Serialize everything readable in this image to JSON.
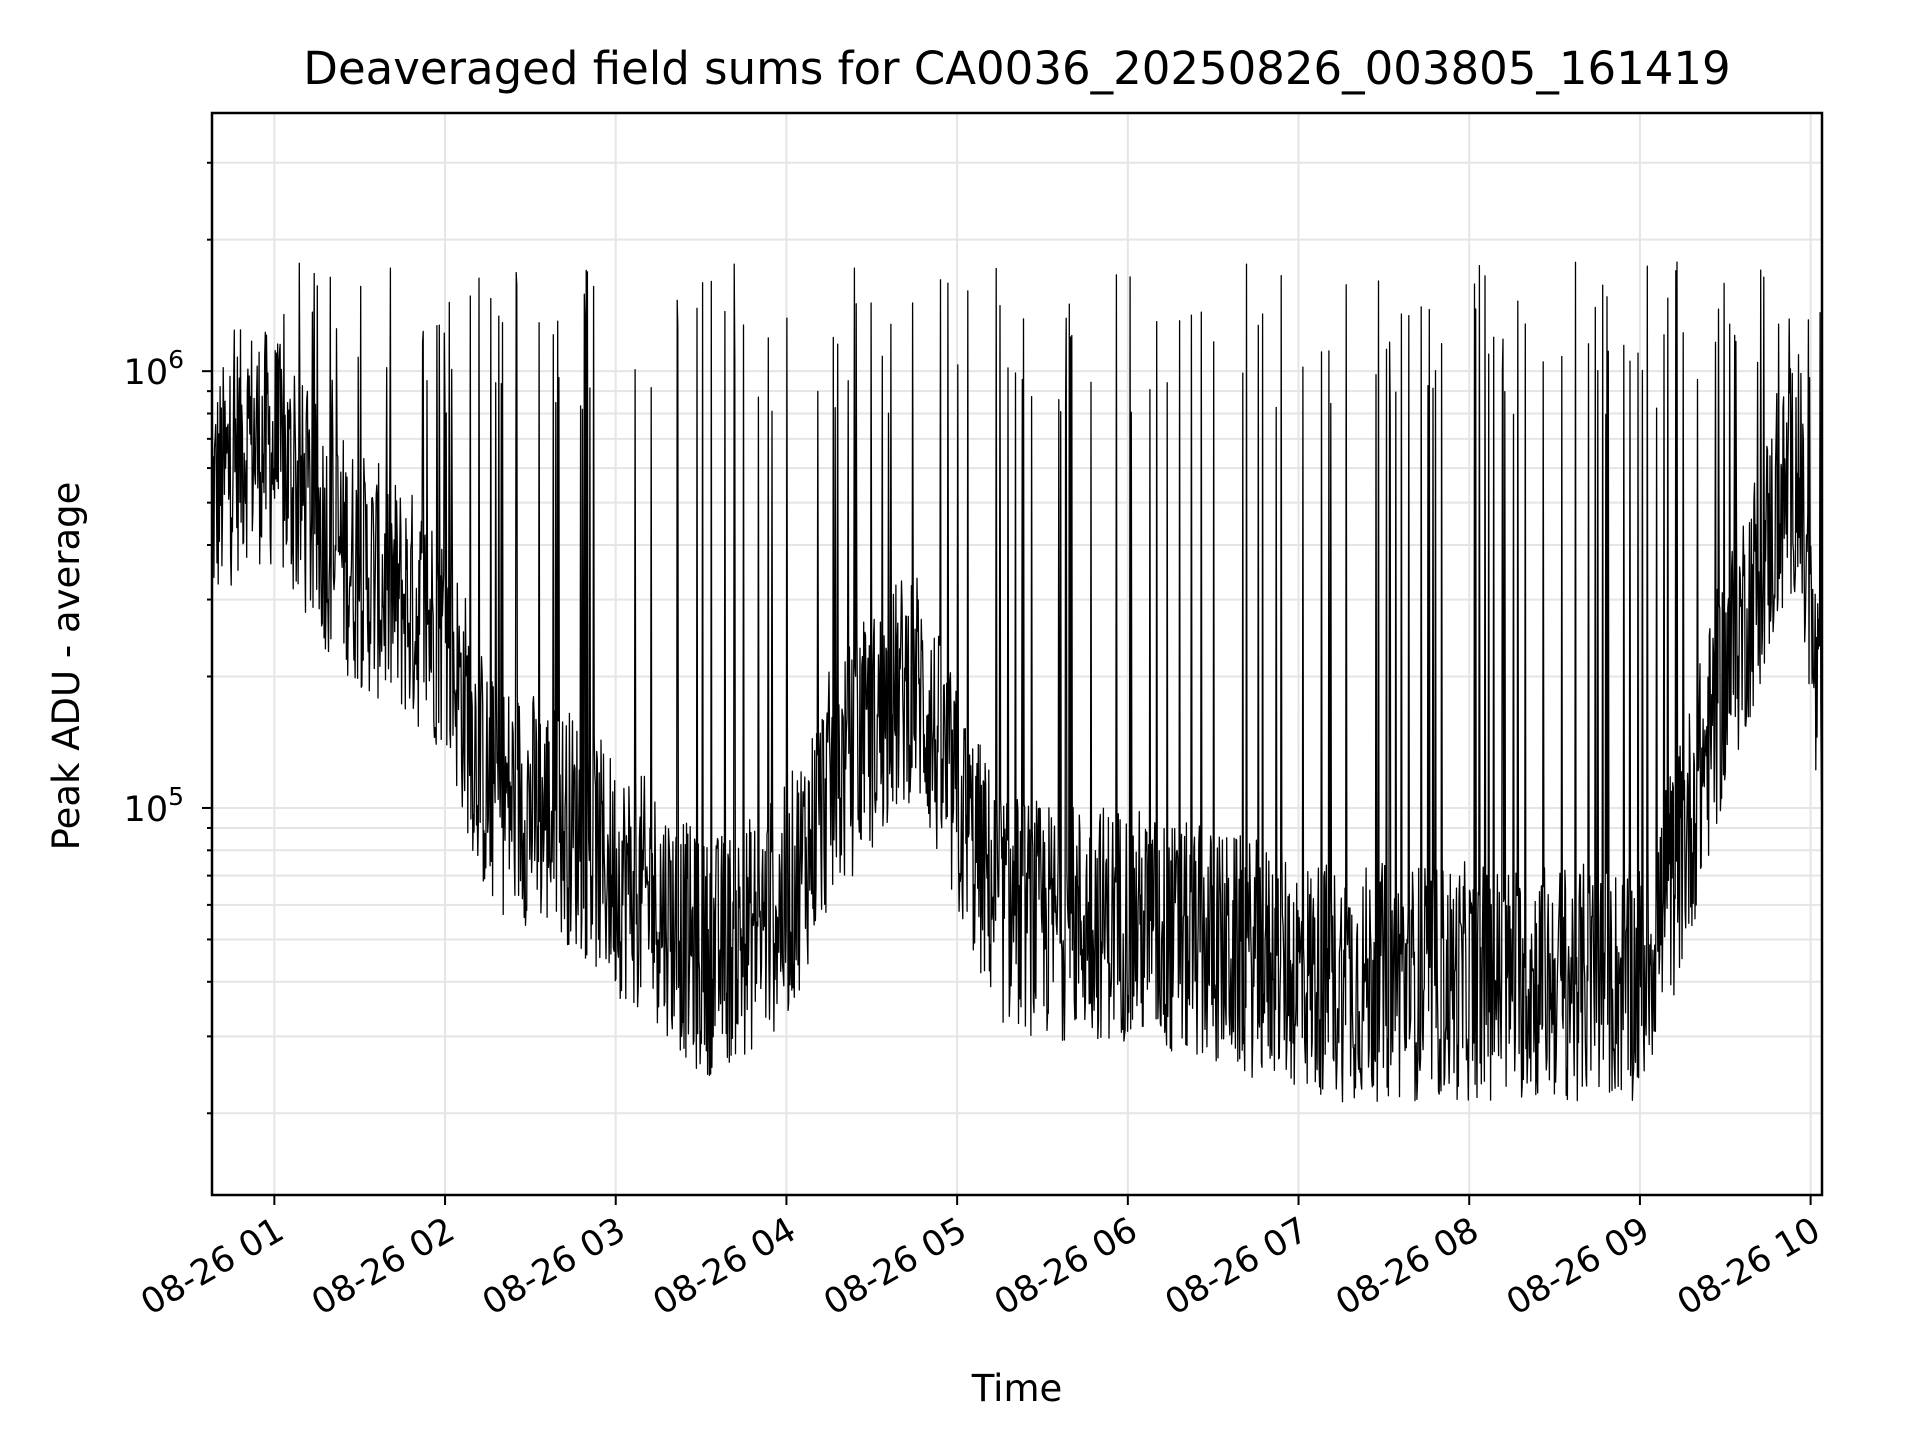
{
  "chart_data": {
    "type": "line",
    "title": "Deaveraged field sums for CA0036_20250826_003805_161419",
    "xlabel": "Time",
    "ylabel": "Peak ADU - average",
    "yscale": "log",
    "ylim": [
      13000,
      3900000
    ],
    "xlim": [
      "2025-08-26 00:38:05",
      "2025-08-26 10:04:00"
    ],
    "grid": true,
    "colors": {
      "line": "#000000",
      "grid": "#e5e5e5",
      "background": "#ffffff"
    },
    "x_ticks": [
      {
        "label": "08-26 01",
        "value": "2025-08-26 01:00"
      },
      {
        "label": "08-26 02",
        "value": "2025-08-26 02:00"
      },
      {
        "label": "08-26 03",
        "value": "2025-08-26 03:00"
      },
      {
        "label": "08-26 04",
        "value": "2025-08-26 04:00"
      },
      {
        "label": "08-26 05",
        "value": "2025-08-26 05:00"
      },
      {
        "label": "08-26 06",
        "value": "2025-08-26 06:00"
      },
      {
        "label": "08-26 07",
        "value": "2025-08-26 07:00"
      },
      {
        "label": "08-26 08",
        "value": "2025-08-26 08:00"
      },
      {
        "label": "08-26 09",
        "value": "2025-08-26 09:00"
      },
      {
        "label": "08-26 10",
        "value": "2025-08-26 10:00"
      }
    ],
    "y_ticks": [
      {
        "base": "10",
        "exp": "5",
        "value": 100000
      },
      {
        "base": "10",
        "exp": "6",
        "value": 1000000
      }
    ],
    "series": [
      {
        "x": [
          "2025-08-26 00:38",
          "2025-08-26 00:50",
          "2025-08-26 01:00",
          "2025-08-26 01:15",
          "2025-08-26 01:30",
          "2025-08-26 01:45",
          "2025-08-26 02:00",
          "2025-08-26 02:15",
          "2025-08-26 02:30",
          "2025-08-26 02:45",
          "2025-08-26 03:00",
          "2025-08-26 03:15",
          "2025-08-26 03:30",
          "2025-08-26 03:45",
          "2025-08-26 04:00",
          "2025-08-26 04:15",
          "2025-08-26 04:30",
          "2025-08-26 04:45",
          "2025-08-26 05:00",
          "2025-08-26 05:15",
          "2025-08-26 05:30",
          "2025-08-26 05:45",
          "2025-08-26 06:00",
          "2025-08-26 06:15",
          "2025-08-26 06:30",
          "2025-08-26 06:45",
          "2025-08-26 07:00",
          "2025-08-26 07:15",
          "2025-08-26 07:30",
          "2025-08-26 07:45",
          "2025-08-26 08:00",
          "2025-08-26 08:15",
          "2025-08-26 08:30",
          "2025-08-26 08:45",
          "2025-08-26 09:00",
          "2025-08-26 09:15",
          "2025-08-26 09:30",
          "2025-08-26 09:45",
          "2025-08-26 09:55",
          "2025-08-26 10:04"
        ],
        "y": [
          500000,
          700000,
          650000,
          450000,
          350000,
          300000,
          250000,
          110000,
          100000,
          90000,
          70000,
          60000,
          45000,
          50000,
          60000,
          110000,
          150000,
          200000,
          100000,
          60000,
          55000,
          55000,
          55000,
          50000,
          48000,
          45000,
          42000,
          40000,
          40000,
          40000,
          40000,
          40000,
          40000,
          40000,
          40000,
          80000,
          200000,
          400000,
          600000,
          130000
        ]
      }
    ]
  }
}
